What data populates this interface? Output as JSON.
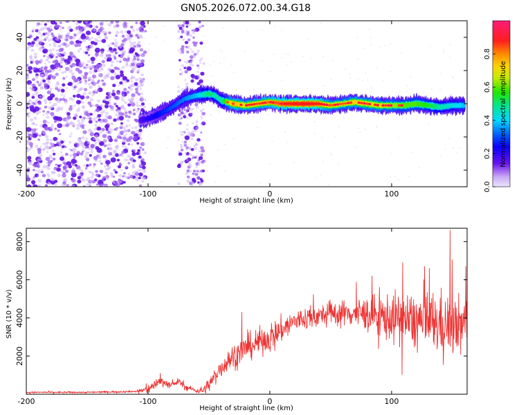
{
  "title": "GN05.2026.072.00.34.G18",
  "chart_data": [
    {
      "type": "heatmap",
      "title": "GN05.2026.072.00.34.G18",
      "xlabel": "Height of straight line (km)",
      "ylabel": "Frequency (Hz)",
      "xlim": [
        -200,
        162
      ],
      "ylim": [
        -50,
        50
      ],
      "xticks": [
        -200,
        -100,
        0,
        100
      ],
      "yticks": [
        -40,
        -20,
        0,
        20,
        40
      ],
      "colorbar": {
        "label": "Normalized spectral amplitude",
        "range": [
          0,
          1
        ],
        "ticks": [
          "0.0",
          "0.2",
          "0.4",
          "0.6",
          "0.8"
        ],
        "tick_values": [
          0.0,
          0.2,
          0.4,
          0.6,
          0.8
        ]
      },
      "ridge": {
        "x": [
          -107,
          -100,
          -90,
          -80,
          -70,
          -60,
          -50,
          -45,
          -40,
          -30,
          -20,
          -10,
          0,
          10,
          20,
          30,
          40,
          50,
          60,
          70,
          80,
          90,
          100,
          110,
          120,
          130,
          140,
          150,
          160
        ],
        "freq": [
          -10,
          -9,
          -6,
          -2,
          3,
          5,
          6,
          5,
          2,
          0,
          -1,
          0,
          1,
          0,
          0,
          0,
          0,
          -1,
          0,
          1,
          0,
          -1,
          -1,
          -1,
          0,
          -1,
          -2,
          -1,
          -1
        ],
        "amplitude": [
          0.2,
          0.25,
          0.3,
          0.35,
          0.4,
          0.45,
          0.6,
          0.55,
          0.55,
          0.9,
          0.8,
          0.85,
          0.9,
          0.95,
          1.0,
          1.0,
          0.95,
          0.8,
          0.75,
          0.85,
          0.8,
          0.8,
          0.75,
          0.7,
          0.7,
          0.65,
          0.55,
          0.5,
          0.45
        ]
      }
    },
    {
      "type": "line",
      "xlabel": "Height of straight line (km)",
      "ylabel": "SNR (10 * v/v)",
      "xlim": [
        -200,
        162
      ],
      "ylim": [
        0,
        8700
      ],
      "xticks": [
        -200,
        -100,
        0,
        100
      ],
      "yticks": [
        2000,
        4000,
        6000,
        8000
      ],
      "series": [
        {
          "name": "SNR",
          "color": "#ee3333",
          "trend_x": [
            -200,
            -150,
            -110,
            -100,
            -95,
            -90,
            -80,
            -75,
            -70,
            -60,
            -55,
            -50,
            -40,
            -30,
            -20,
            -10,
            0,
            10,
            20,
            30,
            40,
            50,
            60,
            70,
            80,
            90,
            100,
            110,
            120,
            130,
            140,
            150,
            162
          ],
          "trend_y": [
            100,
            100,
            150,
            250,
            500,
            700,
            450,
            700,
            400,
            180,
            200,
            500,
            1400,
            2000,
            2400,
            2700,
            3000,
            3400,
            3800,
            4000,
            4100,
            4200,
            4250,
            4250,
            4200,
            4100,
            4000,
            3900,
            3800,
            3800,
            3700,
            3600,
            3600
          ],
          "noise_x": [
            -200,
            -110,
            -100,
            -60,
            -50,
            -30,
            0,
            40,
            70,
            90,
            110,
            140,
            162
          ],
          "noise_y": [
            60,
            70,
            350,
            150,
            500,
            900,
            1000,
            800,
            1000,
            1500,
            2000,
            2300,
            2000
          ],
          "peaks": [
            {
              "x": 148,
              "y": 8600
            },
            {
              "x": 109,
              "y": 6900
            },
            {
              "x": 127,
              "y": 6700
            },
            {
              "x": 161,
              "y": 6700
            },
            {
              "x": -23,
              "y": 4300
            },
            {
              "x": -90,
              "y": 1100
            }
          ]
        }
      ]
    }
  ]
}
